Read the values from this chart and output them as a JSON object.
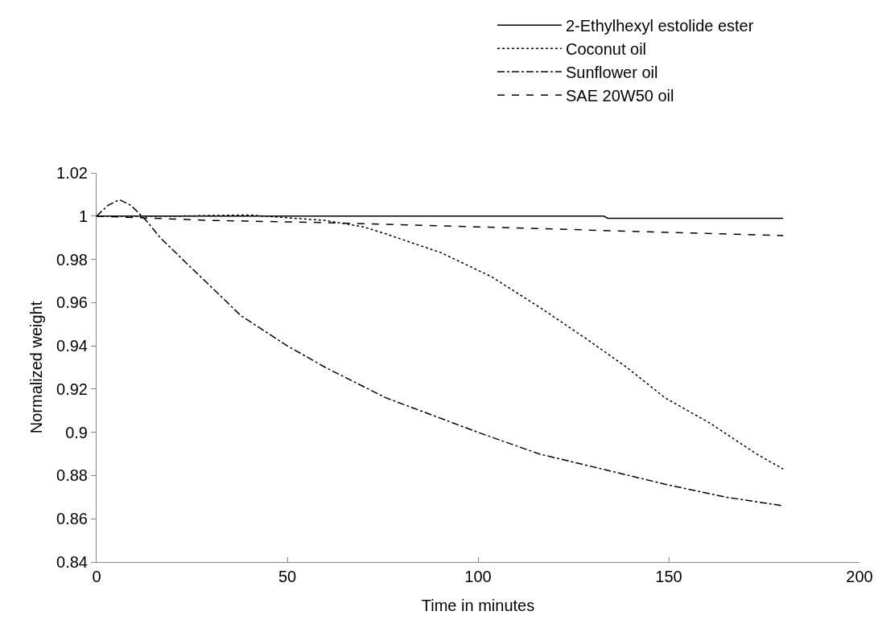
{
  "chart_data": {
    "type": "line",
    "xlabel": "Time in minutes",
    "ylabel": "Normalized weight",
    "xlim": [
      0,
      200
    ],
    "xticks": [
      0,
      50,
      100,
      150,
      200
    ],
    "ylim": [
      0.84,
      1.02
    ],
    "yticks": [
      0.84,
      0.86,
      0.88,
      0.9,
      0.92,
      0.94,
      0.96,
      0.98,
      1,
      1.02
    ],
    "grid": false,
    "legend": "top right",
    "marker": "none",
    "series": [
      {
        "name": "2-Ethylhexyl estolide ester",
        "color": "#000000",
        "line_style": "solid",
        "x": [
          0,
          60,
          133,
          134,
          180
        ],
        "values": [
          1,
          1,
          1,
          0.999,
          0.999
        ]
      },
      {
        "name": "Coconut oil",
        "color": "#000000",
        "line_style": "dotted",
        "x": [
          0,
          20,
          40,
          60,
          70,
          75.8,
          90.4,
          103.5,
          116,
          128.6,
          139,
          149,
          161,
          173,
          180
        ],
        "values": [
          1,
          1,
          1.0005,
          0.998,
          0.995,
          0.9918,
          0.983,
          0.972,
          0.958,
          0.943,
          0.93,
          0.916,
          0.904,
          0.89,
          0.883
        ]
      },
      {
        "name": "Sunflower oil",
        "color": "#000000",
        "line_style": "dashdot",
        "x": [
          0,
          3,
          6,
          9,
          13,
          16.7,
          23.7,
          30.8,
          37.8,
          50,
          60,
          75.8,
          100,
          116,
          132.6,
          149,
          165,
          180
        ],
        "values": [
          1,
          1.005,
          1.0076,
          1.005,
          0.998,
          0.99,
          0.978,
          0.966,
          0.954,
          0.94,
          0.93,
          0.916,
          0.9,
          0.89,
          0.883,
          0.876,
          0.87,
          0.866
        ]
      },
      {
        "name": "SAE 20W50 oil",
        "color": "#000000",
        "line_style": "dashed",
        "x": [
          0,
          30,
          60,
          100,
          140,
          180
        ],
        "values": [
          1,
          0.998,
          0.997,
          0.995,
          0.993,
          0.991
        ]
      }
    ]
  }
}
